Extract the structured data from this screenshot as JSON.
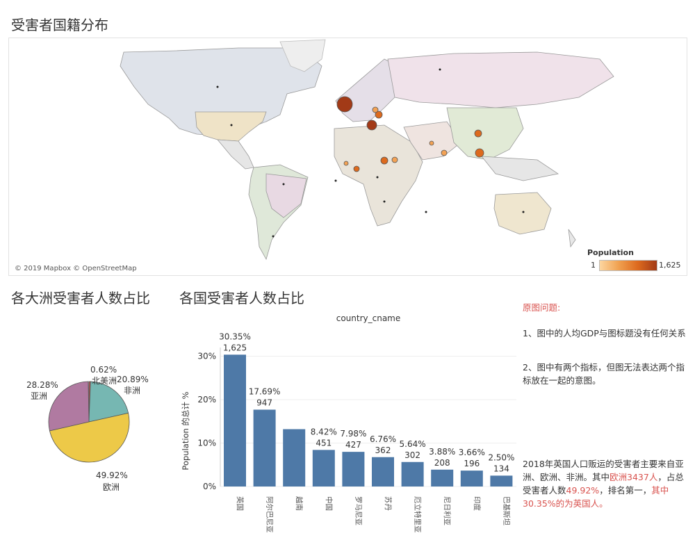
{
  "sections": {
    "map_title": "受害者国籍分布",
    "pie_title": "各大洲受害者人数占比",
    "bar_title": "各国受害者人数占比"
  },
  "map": {
    "attribution": "© 2019 Mapbox © OpenStreetMap",
    "legend_title": "Population",
    "legend_min": "1",
    "legend_max": "1,625",
    "colors": {
      "ocean": "#ffffff",
      "land": "#e8e8e8",
      "bubble_high": "#a23a17",
      "bubble_mid": "#dd6a1e",
      "bubble_low": "#f3a255"
    }
  },
  "notes": {
    "title": "原图问题:",
    "item1": "1、图中的人均GDP与图标题没有任何关系",
    "item2": "2、图中有两个指标，但图无法表达两个指标放在一起的意图。",
    "summary_part1": "2018年英国人口贩运的受害者主要来自亚洲、欧洲、非洲。其中",
    "summary_red1": "欧洲3437人",
    "summary_part2": "，占总受害者人数",
    "summary_red2": "49.92%",
    "summary_part3": "，排名第一，",
    "summary_red3": "其中30.35%的为英国人。"
  },
  "chart_data": [
    {
      "type": "pie",
      "title": "各大洲受害者人数占比",
      "slices": [
        {
          "label": "北美洲",
          "percent": 0.62,
          "color": "#c0504d"
        },
        {
          "label": "非洲",
          "percent": 20.89,
          "color": "#76b7b2"
        },
        {
          "label": "欧洲",
          "percent": 49.92,
          "color": "#edc948"
        },
        {
          "label": "亚洲",
          "percent": 28.28,
          "color": "#b07aa1"
        }
      ]
    },
    {
      "type": "bar",
      "title": "country_cname",
      "ylabel": "Population 的总计 %",
      "ylim": [
        0,
        32
      ],
      "yticks": [
        "0%",
        "10%",
        "20%",
        "30%"
      ],
      "yticks_values": [
        0,
        10,
        20,
        30
      ],
      "color": "#4e79a7",
      "categories": [
        "英国",
        "阿尔巴尼亚",
        "越南",
        "中国",
        "罗马尼亚",
        "苏丹",
        "厄立特里亚",
        "尼日利亚",
        "印度",
        "巴基斯坦"
      ],
      "percents": [
        30.35,
        17.69,
        13.2,
        8.42,
        7.98,
        6.76,
        5.64,
        3.88,
        3.66,
        2.5
      ],
      "percent_labels": [
        "30.35%",
        "17.69%",
        "",
        "8.42%",
        "7.98%",
        "6.76%",
        "5.64%",
        "3.88%",
        "3.66%",
        "2.50%"
      ],
      "count_labels": [
        "1,625",
        "947",
        "",
        "451",
        "427",
        "362",
        "302",
        "208",
        "196",
        "134"
      ]
    }
  ]
}
